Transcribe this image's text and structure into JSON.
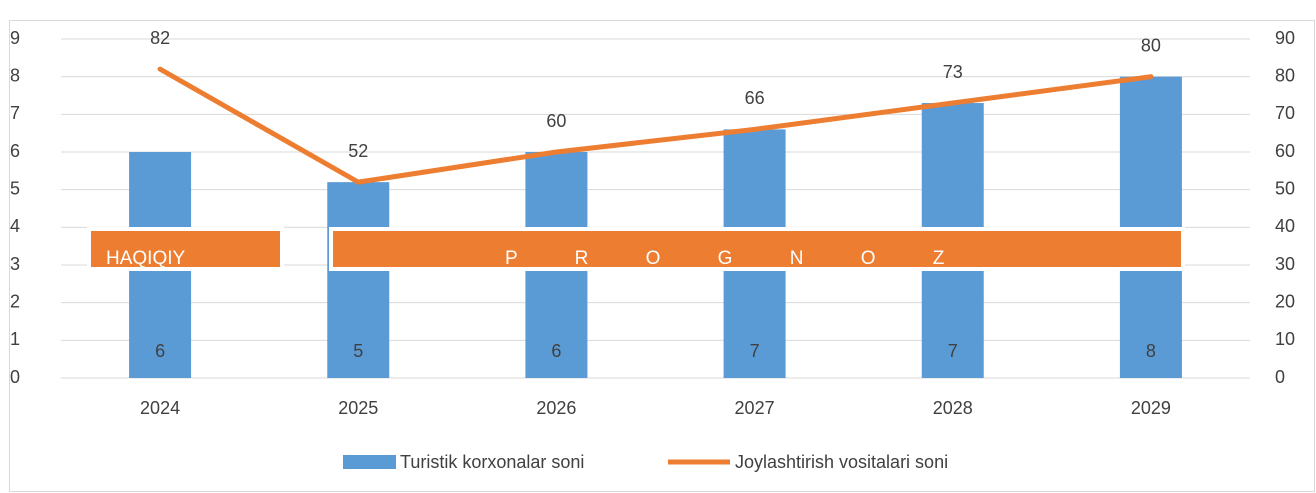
{
  "chart_data": {
    "type": "bar",
    "categories": [
      "2024",
      "2025",
      "2026",
      "2027",
      "2028",
      "2029"
    ],
    "series": [
      {
        "name": "Turistik korxonalar soni",
        "type": "bar",
        "color": "#5b9bd5",
        "values": [
          6,
          5.2,
          6,
          6.6,
          7.3,
          8
        ],
        "value_labels": [
          "6",
          "5",
          "6",
          "7",
          "7",
          "8"
        ]
      },
      {
        "name": "Joylashtirish vositalari soni",
        "type": "line",
        "axis": "y2",
        "color": "#ed7d31",
        "values": [
          82,
          52,
          60,
          66,
          73,
          80
        ]
      }
    ],
    "ylim": [
      0,
      9
    ],
    "yticks": [
      0,
      1,
      2,
      3,
      4,
      5,
      6,
      7,
      8,
      9
    ],
    "y2lim": [
      0,
      90
    ],
    "y2ticks": [
      0,
      10,
      20,
      30,
      40,
      50,
      60,
      70,
      80,
      90
    ],
    "grid": true,
    "legend": "bottom",
    "annotations": [
      {
        "text": "HAQIQIY",
        "color": "#ed7d31"
      },
      {
        "text": "P R O G N O Z",
        "color": "#ed7d31"
      }
    ]
  }
}
